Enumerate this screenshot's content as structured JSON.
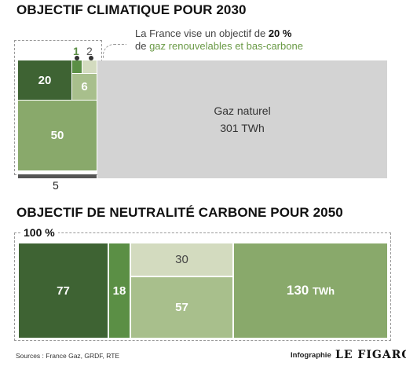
{
  "chart_data": [
    {
      "type": "treemap",
      "title": "OBJECTIF CLIMATIQUE POUR 2030",
      "note_parts": [
        "La France vise un objectif de ",
        "20 %",
        "de ",
        "gaz renouvelables et bas-carbone"
      ],
      "values": [
        {
          "value": 50,
          "label": "50",
          "color": "#89a96b"
        },
        {
          "value": 20,
          "label": "20",
          "color": "#3e6333"
        },
        {
          "value": 6,
          "label": "6",
          "color": "#a8bf8c"
        },
        {
          "value": 1,
          "label": "1",
          "color": "#5b8f45"
        },
        {
          "value": 2,
          "label": "2",
          "color": "#d3dbbf"
        },
        {
          "value": 5,
          "label": "5",
          "color": "#555555"
        },
        {
          "value": 301,
          "label": "Gaz naturel",
          "value_label": "301 TWh",
          "color": "#d3d3d3"
        }
      ]
    },
    {
      "type": "treemap",
      "title": "OBJECTIF DE NEUTRALITÉ CARBONE POUR 2050",
      "total_label": "100 %",
      "values": [
        {
          "value": 77,
          "label": "77",
          "color": "#3e6333"
        },
        {
          "value": 18,
          "label": "18",
          "color": "#5b8f45"
        },
        {
          "value": 30,
          "label": "30",
          "color": "#d3dbbf"
        },
        {
          "value": 57,
          "label": "57",
          "color": "#a8bf8c"
        },
        {
          "value": 130,
          "label": "130",
          "unit": "TWh",
          "color": "#89a96b"
        }
      ]
    }
  ],
  "footer": {
    "sources": "Sources : France Gaz, GRDF, RTE",
    "credit": "Infographie",
    "logo": "LE FIGARO"
  }
}
